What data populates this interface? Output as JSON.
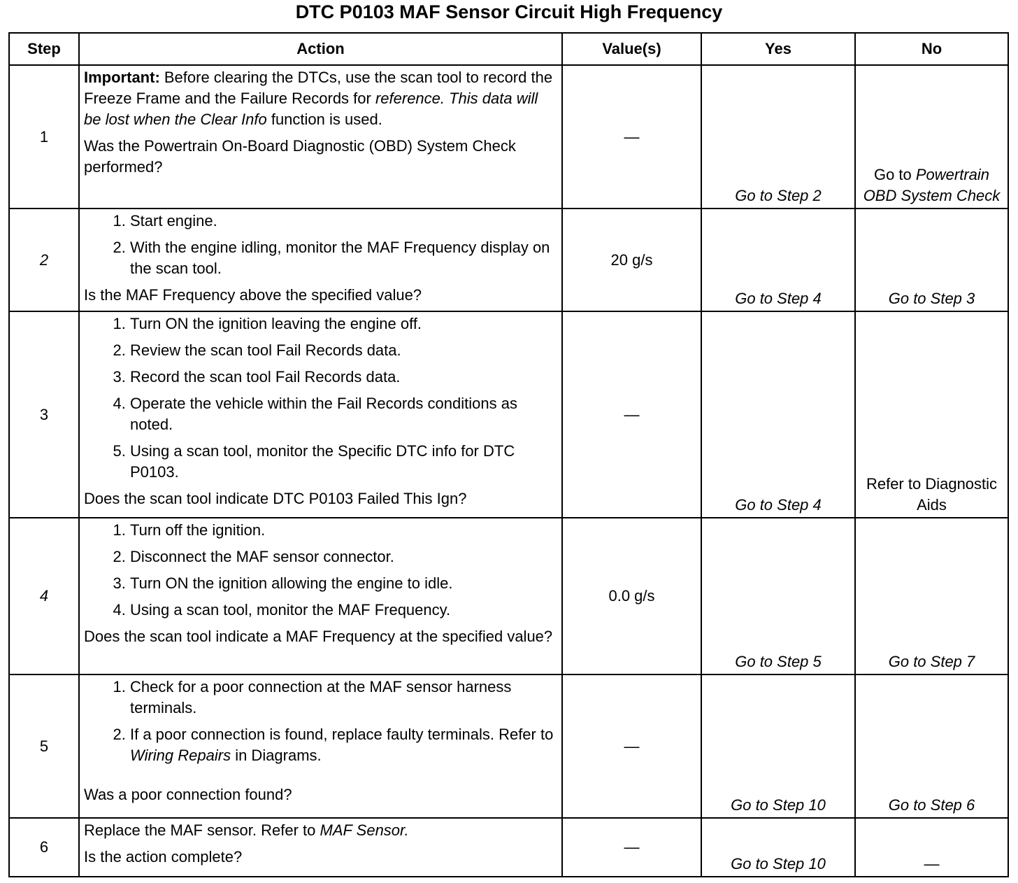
{
  "title": "DTC P0103 MAF Sensor Circuit High Frequency",
  "headers": {
    "step": "Step",
    "action": "Action",
    "values": "Value(s)",
    "yes": "Yes",
    "no": "No"
  },
  "rows": [
    {
      "step": "1",
      "important_label": "Important:",
      "important_text": " Before clearing the DTCs, use the scan tool to record the Freeze Frame and the Failure Records for ",
      "important_italic": "reference. This data will be lost when the Clear Info",
      "important_tail": " function is used.",
      "question": "Was the Powertrain On-Board Diagnostic (OBD) System Check performed?",
      "value": "—",
      "yes": "Go to Step 2",
      "no_plain": "Go to ",
      "no_italic": "Powertrain OBD System Check"
    },
    {
      "step": "2",
      "items": [
        "Start engine.",
        "With the engine idling, monitor the MAF Frequency display on the scan tool."
      ],
      "question": "Is the MAF Frequency above the specified value?",
      "value": "20 g/s",
      "yes": "Go to Step 4",
      "no": "Go to Step 3"
    },
    {
      "step": "3",
      "items": [
        "Turn ON the ignition leaving the engine off.",
        "Review the scan tool Fail Records data.",
        "Record the scan tool Fail Records data.",
        "Operate the vehicle within the Fail Records conditions as noted.",
        "Using a scan tool, monitor the Specific DTC info for DTC P0103."
      ],
      "question": "Does the scan tool indicate DTC P0103 Failed This Ign?",
      "value": "—",
      "yes": "Go to Step 4",
      "no": "Refer to Diagnostic Aids"
    },
    {
      "step": "4",
      "items": [
        "Turn off the ignition.",
        "Disconnect the MAF sensor connector.",
        "Turn ON the ignition allowing the engine to idle.",
        "Using a scan tool, monitor the MAF Frequency."
      ],
      "question": "Does the scan tool indicate a MAF Frequency at the specified value?",
      "value": "0.0 g/s",
      "yes": "Go to Step 5",
      "no": "Go to Step 7"
    },
    {
      "step": "5",
      "items": [
        "Check for a poor connection at the MAF sensor harness terminals."
      ],
      "item2_plain": "If a poor connection is found, replace faulty terminals. Refer to ",
      "item2_italic": "Wiring Repairs",
      "item2_tail": " in Diagrams.",
      "question": "Was a poor connection found?",
      "value": "—",
      "yes": "Go to Step 10",
      "no": "Go to Step 6"
    },
    {
      "step": "6",
      "text_plain": "Replace the MAF sensor. Refer to ",
      "text_italic": "MAF Sensor.",
      "question": "Is the action complete?",
      "value": "—",
      "yes": "Go to Step 10",
      "no": "—"
    }
  ]
}
